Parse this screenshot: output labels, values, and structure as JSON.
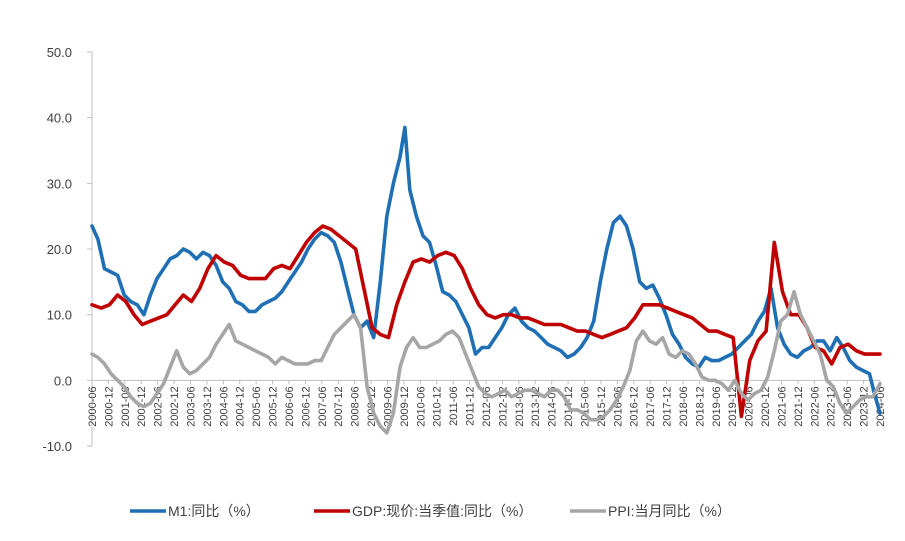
{
  "chart_data": {
    "type": "line",
    "title": "",
    "xlabel": "",
    "ylabel": "",
    "ylim": [
      -10,
      50
    ],
    "yticks": [
      "50.0",
      "40.0",
      "30.0",
      "20.0",
      "10.0",
      "0.0",
      "-10.0"
    ],
    "ytick_values": [
      50,
      40,
      30,
      20,
      10,
      0,
      -10
    ],
    "xrange": [
      2000.42,
      2024.42
    ],
    "x_tick_labels": [
      "2000-06",
      "2000-12",
      "2001-06",
      "2001-12",
      "2002-06",
      "2002-12",
      "2003-06",
      "2003-12",
      "2004-06",
      "2004-12",
      "2005-06",
      "2005-12",
      "2006-06",
      "2006-12",
      "2007-06",
      "2007-12",
      "2008-06",
      "2008-12",
      "2009-06",
      "2009-12",
      "2010-06",
      "2010-12",
      "2011-06",
      "2011-12",
      "2012-06",
      "2012-12",
      "2013-06",
      "2013-12",
      "2014-06",
      "2014-12",
      "2015-06",
      "2015-12",
      "2016-06",
      "2016-12",
      "2017-06",
      "2017-12",
      "2018-06",
      "2018-12",
      "2019-06",
      "2019-12",
      "2020-06",
      "2020-12",
      "2021-06",
      "2021-12",
      "2022-06",
      "2022-12",
      "2023-06",
      "2023-12",
      "2024-06"
    ],
    "x_tick_values": [
      2000.42,
      2000.92,
      2001.42,
      2001.92,
      2002.42,
      2002.92,
      2003.42,
      2003.92,
      2004.42,
      2004.92,
      2005.42,
      2005.92,
      2006.42,
      2006.92,
      2007.42,
      2007.92,
      2008.42,
      2008.92,
      2009.42,
      2009.92,
      2010.42,
      2010.92,
      2011.42,
      2011.92,
      2012.42,
      2012.92,
      2013.42,
      2013.92,
      2014.42,
      2014.92,
      2015.42,
      2015.92,
      2016.42,
      2016.92,
      2017.42,
      2017.92,
      2018.42,
      2018.92,
      2019.42,
      2019.92,
      2020.42,
      2020.92,
      2021.42,
      2021.92,
      2022.42,
      2022.92,
      2023.42,
      2023.92,
      2024.42
    ],
    "legend_position": "bottom",
    "series": [
      {
        "name": "M1:同比（%）",
        "color": "#1F6FB4",
        "x": [
          2000.42,
          2000.6,
          2000.8,
          2001.0,
          2001.2,
          2001.4,
          2001.6,
          2001.8,
          2002.0,
          2002.2,
          2002.4,
          2002.6,
          2002.8,
          2003.0,
          2003.2,
          2003.4,
          2003.6,
          2003.8,
          2004.0,
          2004.2,
          2004.4,
          2004.6,
          2004.8,
          2005.0,
          2005.2,
          2005.4,
          2005.6,
          2005.8,
          2006.0,
          2006.2,
          2006.4,
          2006.6,
          2006.8,
          2007.0,
          2007.2,
          2007.4,
          2007.6,
          2007.8,
          2008.0,
          2008.2,
          2008.4,
          2008.6,
          2008.8,
          2009.0,
          2009.2,
          2009.4,
          2009.6,
          2009.8,
          2009.95,
          2010.1,
          2010.3,
          2010.5,
          2010.7,
          2010.9,
          2011.1,
          2011.3,
          2011.5,
          2011.7,
          2011.9,
          2012.1,
          2012.3,
          2012.5,
          2012.7,
          2012.9,
          2013.1,
          2013.3,
          2013.5,
          2013.7,
          2013.9,
          2014.1,
          2014.3,
          2014.5,
          2014.7,
          2014.9,
          2015.1,
          2015.3,
          2015.5,
          2015.7,
          2015.9,
          2016.1,
          2016.3,
          2016.5,
          2016.7,
          2016.9,
          2017.1,
          2017.3,
          2017.5,
          2017.7,
          2017.9,
          2018.1,
          2018.3,
          2018.5,
          2018.7,
          2018.9,
          2019.1,
          2019.3,
          2019.5,
          2019.7,
          2019.9,
          2020.1,
          2020.3,
          2020.5,
          2020.7,
          2020.9,
          2021.1,
          2021.3,
          2021.5,
          2021.7,
          2021.9,
          2022.1,
          2022.3,
          2022.5,
          2022.7,
          2022.9,
          2023.1,
          2023.3,
          2023.5,
          2023.7,
          2023.9,
          2024.1,
          2024.25,
          2024.42
        ],
        "values": [
          23.5,
          21.5,
          17.0,
          16.5,
          16.0,
          13.0,
          12.0,
          11.5,
          10.0,
          13.0,
          15.5,
          17.0,
          18.5,
          19.0,
          20.0,
          19.5,
          18.5,
          19.5,
          19.0,
          17.5,
          15.0,
          14.0,
          12.0,
          11.5,
          10.5,
          10.5,
          11.5,
          12.0,
          12.5,
          13.5,
          15.0,
          16.5,
          18.0,
          20.0,
          21.5,
          22.5,
          22.0,
          21.0,
          18.0,
          14.0,
          10.0,
          8.0,
          9.0,
          6.5,
          15.0,
          25.0,
          30.0,
          34.0,
          38.5,
          29.0,
          25.0,
          22.0,
          21.0,
          17.5,
          13.5,
          13.0,
          12.0,
          10.0,
          8.0,
          4.0,
          5.0,
          5.0,
          6.5,
          8.0,
          10.0,
          11.0,
          9.0,
          8.0,
          7.5,
          6.5,
          5.5,
          5.0,
          4.5,
          3.5,
          4.0,
          5.0,
          6.5,
          9.0,
          15.0,
          20.0,
          24.0,
          25.0,
          23.5,
          20.0,
          15.0,
          14.0,
          14.5,
          12.5,
          10.0,
          7.0,
          5.5,
          3.5,
          2.5,
          2.0,
          3.5,
          3.0,
          3.0,
          3.5,
          4.0,
          5.0,
          6.0,
          7.0,
          9.0,
          10.5,
          14.0,
          8.0,
          5.5,
          4.0,
          3.5,
          4.5,
          5.0,
          6.0,
          6.0,
          4.5,
          6.5,
          5.0,
          3.0,
          2.0,
          1.5,
          1.0,
          -2.0,
          -5.0
        ]
      },
      {
        "name": "GDP:现价:当季值:同比（%）",
        "color": "#C00000",
        "x": [
          2000.42,
          2000.7,
          2000.95,
          2001.2,
          2001.45,
          2001.7,
          2001.95,
          2002.2,
          2002.45,
          2002.7,
          2002.95,
          2003.2,
          2003.45,
          2003.7,
          2003.95,
          2004.2,
          2004.45,
          2004.7,
          2004.95,
          2005.2,
          2005.45,
          2005.7,
          2005.95,
          2006.2,
          2006.45,
          2006.7,
          2006.95,
          2007.2,
          2007.45,
          2007.7,
          2007.95,
          2008.2,
          2008.45,
          2008.7,
          2008.95,
          2009.2,
          2009.45,
          2009.7,
          2009.95,
          2010.2,
          2010.45,
          2010.7,
          2010.95,
          2011.2,
          2011.45,
          2011.7,
          2011.95,
          2012.2,
          2012.45,
          2012.7,
          2012.95,
          2013.2,
          2013.45,
          2013.7,
          2013.95,
          2014.2,
          2014.45,
          2014.7,
          2014.95,
          2015.2,
          2015.45,
          2015.7,
          2015.95,
          2016.2,
          2016.45,
          2016.7,
          2016.95,
          2017.2,
          2017.45,
          2017.7,
          2017.95,
          2018.2,
          2018.45,
          2018.7,
          2018.95,
          2019.2,
          2019.45,
          2019.7,
          2019.95,
          2020.2,
          2020.45,
          2020.7,
          2020.95,
          2021.2,
          2021.45,
          2021.7,
          2021.95,
          2022.2,
          2022.45,
          2022.7,
          2022.95,
          2023.2,
          2023.45,
          2023.7,
          2023.95,
          2024.2,
          2024.42
        ],
        "values": [
          11.5,
          11.0,
          11.5,
          13.0,
          12.0,
          10.0,
          8.5,
          9.0,
          9.5,
          10.0,
          11.5,
          13.0,
          12.0,
          14.0,
          17.0,
          19.0,
          18.0,
          17.5,
          16.0,
          15.5,
          15.5,
          15.5,
          17.0,
          17.5,
          17.0,
          19.0,
          21.0,
          22.5,
          23.5,
          23.0,
          22.0,
          21.0,
          20.0,
          14.0,
          8.0,
          7.0,
          6.5,
          11.5,
          15.0,
          18.0,
          18.5,
          18.0,
          19.0,
          19.5,
          19.0,
          17.0,
          14.0,
          11.5,
          10.0,
          9.5,
          10.0,
          10.0,
          9.5,
          9.5,
          9.0,
          8.5,
          8.5,
          8.5,
          8.0,
          7.5,
          7.5,
          7.0,
          6.5,
          7.0,
          7.5,
          8.0,
          9.5,
          11.5,
          11.5,
          11.5,
          11.0,
          10.5,
          10.0,
          9.5,
          8.5,
          7.5,
          7.5,
          7.0,
          6.5,
          -5.5,
          3.0,
          6.0,
          7.5,
          21.0,
          13.5,
          10.0,
          10.0,
          8.0,
          5.0,
          4.5,
          2.5,
          5.0,
          5.5,
          4.5,
          4.0,
          4.0,
          4.0
        ]
      },
      {
        "name": "PPI:当月同比（%）",
        "color": "#A6A6A6",
        "x": [
          2000.42,
          2000.6,
          2000.8,
          2001.0,
          2001.2,
          2001.4,
          2001.6,
          2001.8,
          2002.0,
          2002.2,
          2002.4,
          2002.6,
          2002.8,
          2003.0,
          2003.2,
          2003.4,
          2003.6,
          2003.8,
          2004.0,
          2004.2,
          2004.4,
          2004.6,
          2004.8,
          2005.0,
          2005.2,
          2005.4,
          2005.6,
          2005.8,
          2006.0,
          2006.2,
          2006.4,
          2006.6,
          2006.8,
          2007.0,
          2007.2,
          2007.4,
          2007.6,
          2007.8,
          2008.0,
          2008.2,
          2008.4,
          2008.6,
          2008.8,
          2009.0,
          2009.2,
          2009.4,
          2009.6,
          2009.8,
          2010.0,
          2010.2,
          2010.4,
          2010.6,
          2010.8,
          2011.0,
          2011.2,
          2011.4,
          2011.6,
          2011.8,
          2012.0,
          2012.2,
          2012.4,
          2012.6,
          2012.8,
          2013.0,
          2013.2,
          2013.4,
          2013.6,
          2013.8,
          2014.0,
          2014.2,
          2014.4,
          2014.6,
          2014.8,
          2015.0,
          2015.2,
          2015.4,
          2015.6,
          2015.8,
          2016.0,
          2016.2,
          2016.4,
          2016.6,
          2016.8,
          2017.0,
          2017.2,
          2017.4,
          2017.6,
          2017.8,
          2018.0,
          2018.2,
          2018.4,
          2018.6,
          2018.8,
          2019.0,
          2019.2,
          2019.4,
          2019.6,
          2019.8,
          2020.0,
          2020.2,
          2020.4,
          2020.6,
          2020.8,
          2021.0,
          2021.2,
          2021.4,
          2021.6,
          2021.8,
          2022.0,
          2022.2,
          2022.4,
          2022.6,
          2022.8,
          2023.0,
          2023.2,
          2023.4,
          2023.6,
          2023.8,
          2024.0,
          2024.2,
          2024.42
        ],
        "values": [
          4.0,
          3.5,
          2.5,
          1.0,
          0.0,
          -1.0,
          -2.5,
          -3.5,
          -4.0,
          -3.5,
          -2.0,
          -0.5,
          2.0,
          4.5,
          2.0,
          1.0,
          1.5,
          2.5,
          3.5,
          5.5,
          7.0,
          8.5,
          6.0,
          5.5,
          5.0,
          4.5,
          4.0,
          3.5,
          2.5,
          3.5,
          3.0,
          2.5,
          2.5,
          2.5,
          3.0,
          3.0,
          5.0,
          7.0,
          8.0,
          9.0,
          10.0,
          8.0,
          -1.0,
          -5.0,
          -7.0,
          -8.0,
          -5.0,
          2.0,
          5.0,
          6.5,
          5.0,
          5.0,
          5.5,
          6.0,
          7.0,
          7.5,
          6.5,
          4.0,
          1.5,
          -1.0,
          -2.0,
          -2.5,
          -2.0,
          -1.5,
          -2.5,
          -2.0,
          -1.5,
          -1.5,
          -2.0,
          -2.5,
          -1.5,
          -1.5,
          -2.5,
          -4.5,
          -4.5,
          -5.0,
          -6.0,
          -6.0,
          -5.5,
          -4.5,
          -3.0,
          -1.0,
          1.5,
          6.0,
          7.5,
          6.0,
          5.5,
          6.5,
          4.0,
          3.5,
          4.5,
          4.0,
          2.5,
          0.5,
          0.0,
          0.0,
          -0.5,
          -1.5,
          0.0,
          -2.0,
          -3.0,
          -2.0,
          -1.5,
          0.5,
          4.5,
          9.0,
          10.0,
          13.5,
          10.0,
          8.0,
          6.0,
          4.0,
          0.0,
          -1.0,
          -3.5,
          -5.0,
          -4.0,
          -3.0,
          -2.5,
          -2.5,
          -0.5
        ]
      }
    ]
  }
}
